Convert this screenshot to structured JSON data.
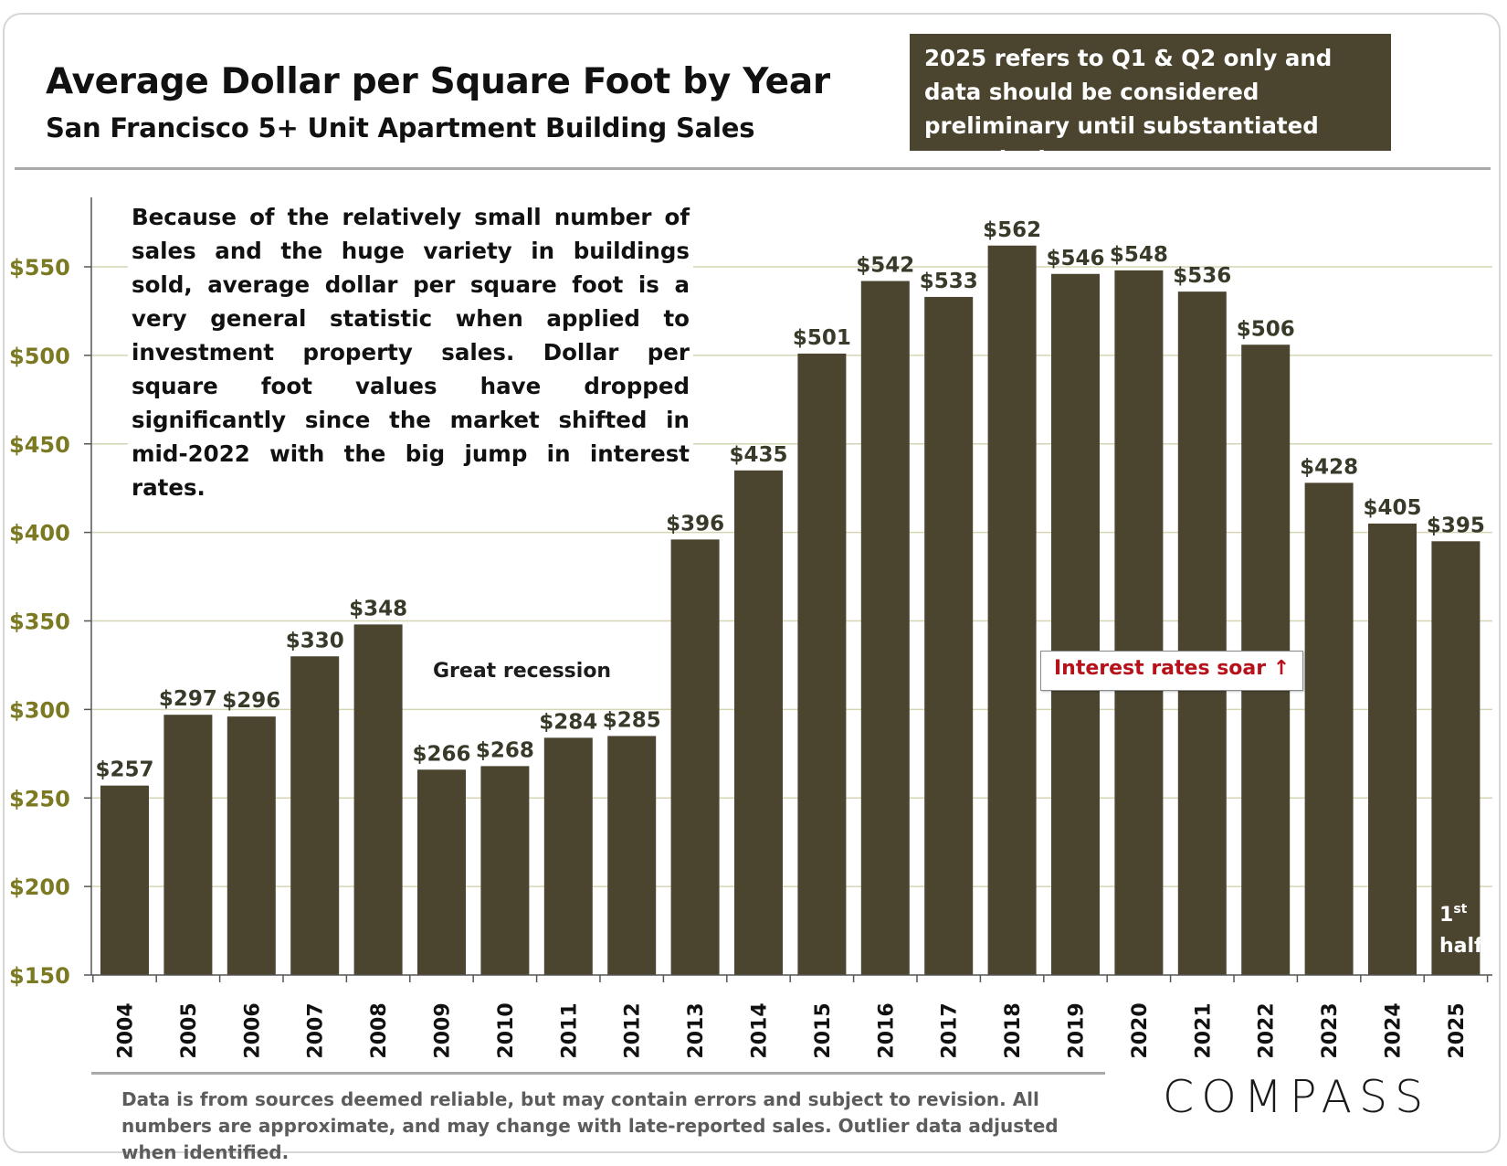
{
  "header": {
    "title": "Average Dollar per Square Foot by Year",
    "subtitle": "San Francisco 5+ Unit Apartment Building Sales",
    "note": "2025 refers to Q1 & Q2 only and data should be considered preliminary until substantiated over the longer term."
  },
  "commentary": "Because of the relatively small number of sales and the huge variety in buildings sold, average dollar per square foot is a very general statistic when applied to investment property sales. Dollar per square foot values have dropped significantly since the market shifted in mid-2022 with the big jump in interest rates.",
  "annotations": {
    "recession": "Great recession",
    "interest_rates": "Interest rates soar ↑",
    "half_number": "1",
    "half_suffix": "st",
    "half_word": "half"
  },
  "footer": {
    "disclaimer": "Data is from sources deemed reliable, but may contain errors and subject to revision. All numbers are approximate, and may change with late-reported sales.  Outlier data adjusted when identified.",
    "logo": "COMPASS"
  },
  "colors": {
    "bar": "#4b4530",
    "y_tick_label": "#7b7a22",
    "gridline": "#d5d5b4",
    "callout_text": "#b5121b"
  },
  "chart_data": {
    "type": "bar",
    "title": "Average Dollar per Square Foot by Year",
    "subtitle": "San Francisco 5+ Unit Apartment Building Sales",
    "categories": [
      "2004",
      "2005",
      "2006",
      "2007",
      "2008",
      "2009",
      "2010",
      "2011",
      "2012",
      "2013",
      "2014",
      "2015",
      "2016",
      "2017",
      "2018",
      "2019",
      "2020",
      "2021",
      "2022",
      "2023",
      "2024",
      "2025"
    ],
    "values": [
      257,
      297,
      296,
      330,
      348,
      266,
      268,
      284,
      285,
      396,
      435,
      501,
      542,
      533,
      562,
      546,
      548,
      536,
      506,
      428,
      405,
      395
    ],
    "value_labels": [
      "$257",
      "$297",
      "$296",
      "$330",
      "$348",
      "$266",
      "$268",
      "$284",
      "$285",
      "$396",
      "$435",
      "$501",
      "$542",
      "$533",
      "$562",
      "$546",
      "$548",
      "$536",
      "$506",
      "$428",
      "$405",
      "$395"
    ],
    "ylim": [
      150,
      580
    ],
    "yticks": [
      150,
      200,
      250,
      300,
      350,
      400,
      450,
      500,
      550
    ],
    "ytick_labels": [
      "$150",
      "$200",
      "$250",
      "$300",
      "$350",
      "$400",
      "$450",
      "$500",
      "$550"
    ],
    "xlabel": "",
    "ylabel": "",
    "grid": "horizontal",
    "legend": "none"
  }
}
